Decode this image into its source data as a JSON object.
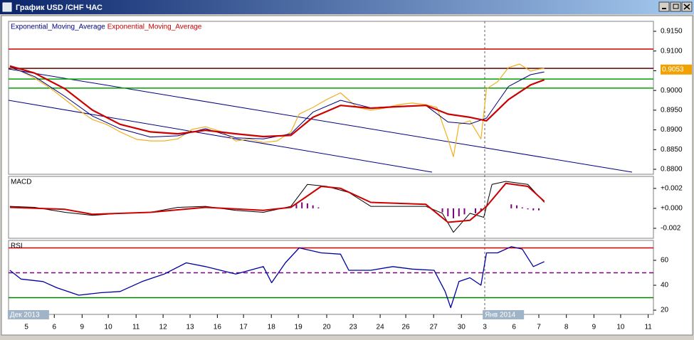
{
  "window": {
    "title": "График USD /CHF ЧАС"
  },
  "chart_data": [
    {
      "type": "line",
      "ylim": [
        0.87874,
        0.91753
      ],
      "yticks": [
        {
          "value": 0.915,
          "label": "0.9150"
        },
        {
          "value": 0.91,
          "label": "0.9100"
        },
        {
          "value": 0.905,
          "label": "0.9050"
        },
        {
          "value": 0.9,
          "label": "0.9000"
        },
        {
          "value": 0.895,
          "label": "0.8950"
        },
        {
          "value": 0.89,
          "label": "0.8900"
        },
        {
          "value": 0.885,
          "label": "0.8850"
        },
        {
          "value": 0.88,
          "label": "0.8800"
        }
      ],
      "last_price": 0.9053,
      "hlines": [
        {
          "value": 0.9105,
          "color": "#cc0000"
        },
        {
          "value": 0.9056,
          "color": "#600000"
        },
        {
          "value": 0.9029,
          "color": "#00a000"
        },
        {
          "value": 0.9006,
          "color": "#00a000"
        }
      ],
      "series": [
        {
          "color": "#f0b020",
          "width": 1.2,
          "style": "line",
          "x": [
            -0.6,
            -0.2,
            0.3,
            0.9,
            1.4,
            1.9,
            2.4,
            2.9,
            3.4,
            4.0,
            4.5,
            5.0,
            5.5,
            6.0,
            6.5,
            7.1,
            7.6,
            8.1,
            8.6,
            9.1,
            9.6,
            9.9,
            10.4,
            10.9,
            11.4,
            12.0,
            12.5,
            13.0,
            13.5,
            14.0,
            14.5,
            14.9,
            15.3,
            15.5,
            15.7,
            16.1,
            16.5,
            16.7,
            17.1,
            17.5,
            17.9,
            18.3,
            18.6,
            18.8
          ],
          "values": [
            0.9058,
            0.9049,
            0.9031,
            0.9004,
            0.8977,
            0.895,
            0.8926,
            0.8914,
            0.8895,
            0.8876,
            0.8872,
            0.8872,
            0.8877,
            0.8901,
            0.8908,
            0.8895,
            0.8872,
            0.8877,
            0.8868,
            0.8872,
            0.8895,
            0.894,
            0.8957,
            0.8977,
            0.8994,
            0.8957,
            0.895,
            0.8955,
            0.8964,
            0.8968,
            0.8964,
            0.8957,
            0.8877,
            0.8832,
            0.8914,
            0.8923,
            0.8877,
            0.9004,
            0.9022,
            0.9058,
            0.9067,
            0.9049,
            0.9054,
            0.9056
          ]
        },
        {
          "name": "Exponential_Moving_Average",
          "color": "#000080",
          "width": 1,
          "style": "line",
          "x": [
            -0.6,
            0.3,
            1.4,
            2.4,
            3.4,
            4.5,
            5.5,
            6.5,
            7.6,
            8.6,
            9.6,
            10.4,
            11.4,
            12.5,
            13.5,
            14.5,
            15.3,
            16.1,
            16.7,
            17.5,
            18.3,
            18.8
          ],
          "values": [
            0.906,
            0.9035,
            0.8985,
            0.8935,
            0.8903,
            0.8882,
            0.8885,
            0.8903,
            0.888,
            0.8877,
            0.889,
            0.8945,
            0.8975,
            0.8956,
            0.896,
            0.8962,
            0.892,
            0.8915,
            0.893,
            0.901,
            0.904,
            0.9047
          ]
        },
        {
          "name": "Exponential_Moving_Average",
          "color": "#cc0000",
          "width": 2.2,
          "style": "line",
          "x": [
            -0.6,
            0.3,
            1.4,
            2.4,
            3.4,
            4.5,
            5.5,
            6.5,
            7.6,
            8.6,
            9.6,
            10.4,
            11.4,
            12.5,
            13.5,
            14.5,
            15.3,
            16.1,
            16.7,
            17.5,
            18.3,
            18.8
          ],
          "values": [
            0.9062,
            0.9044,
            0.9004,
            0.895,
            0.8914,
            0.8895,
            0.889,
            0.8899,
            0.889,
            0.8883,
            0.8886,
            0.8932,
            0.8962,
            0.8955,
            0.8959,
            0.8962,
            0.894,
            0.8932,
            0.8923,
            0.8977,
            0.9014,
            0.9027
          ]
        }
      ]
    },
    {
      "type": "line",
      "title": "MACD",
      "ylim": [
        -0.003,
        0.0032
      ],
      "yticks": [
        {
          "value": 0.002,
          "label": "+0.002"
        },
        {
          "value": 0,
          "label": "+0.000"
        },
        {
          "value": -0.002,
          "label": "-0.002"
        }
      ],
      "series": [
        {
          "color": "#800080",
          "width": 2,
          "style": "bar",
          "x": [
            9.8,
            10.0,
            10.2,
            10.4,
            10.6,
            15.1,
            15.3,
            15.5,
            15.7,
            15.9,
            16.3,
            16.5,
            17.6,
            17.8,
            18.0,
            18.2,
            18.4,
            18.6
          ],
          "values": [
            0.0004,
            0.0006,
            0.0005,
            0.0003,
            0.0001,
            -0.0004,
            -0.0008,
            -0.001,
            -0.0008,
            -0.0006,
            -0.0005,
            -0.0003,
            0.0004,
            0.0003,
            0.0001,
            -0.0001,
            -0.0002,
            -0.0002
          ]
        },
        {
          "color": "#000000",
          "width": 1,
          "style": "line",
          "x": [
            -0.6,
            0.3,
            1.4,
            2.4,
            3.4,
            4.5,
            5.5,
            6.5,
            7.6,
            8.6,
            9.6,
            10.2,
            10.9,
            11.7,
            12.5,
            13.5,
            14.5,
            15.1,
            15.5,
            16.1,
            16.6,
            16.9,
            17.4,
            18.2,
            18.8
          ],
          "values": [
            0.0002,
            0.0001,
            -0.0004,
            -0.0007,
            -0.0005,
            -0.0004,
            0.0001,
            0.0002,
            -0.0002,
            -0.0004,
            0.0002,
            0.0024,
            0.0022,
            0.0016,
            0.0002,
            0.0002,
            0.0002,
            -0.0005,
            -0.0024,
            -0.0005,
            -0.0009,
            0.0024,
            0.0027,
            0.0024,
            0.0006
          ]
        },
        {
          "color": "#cc0000",
          "width": 2,
          "style": "line",
          "x": [
            -0.6,
            1.4,
            2.4,
            4.5,
            6.5,
            8.6,
            9.6,
            10.7,
            11.4,
            12.5,
            14.5,
            15.3,
            16.1,
            16.7,
            17.4,
            18.2,
            18.8
          ],
          "values": [
            0.0001,
            -0.0001,
            -0.0006,
            -0.0004,
            0.0001,
            -0.0002,
            0.0001,
            0.0022,
            0.002,
            0.0006,
            0.0004,
            -0.0014,
            -0.0012,
            0.0002,
            0.0025,
            0.0022,
            0.0007
          ]
        }
      ]
    },
    {
      "type": "line",
      "title": "RSI",
      "ylim": [
        16.6,
        76
      ],
      "yticks": [
        60,
        40,
        20
      ],
      "hlines": [
        {
          "value": 70,
          "color": "#dd0000"
        },
        {
          "value": 50,
          "color": "#800080",
          "style": "dashed"
        },
        {
          "value": 30,
          "color": "#008000"
        }
      ],
      "xlim": [
        -0.65,
        22.76
      ],
      "xticks": [
        {
          "value": 0,
          "label": "5"
        },
        {
          "value": 1.01,
          "label": "6"
        },
        {
          "value": 2.02,
          "label": "9"
        },
        {
          "value": 2.97,
          "label": "10"
        },
        {
          "value": 3.98,
          "label": "11"
        },
        {
          "value": 4.96,
          "label": "12"
        },
        {
          "value": 5.94,
          "label": "13"
        },
        {
          "value": 6.93,
          "label": "16"
        },
        {
          "value": 7.88,
          "label": "17"
        },
        {
          "value": 8.89,
          "label": "18"
        },
        {
          "value": 9.87,
          "label": "19"
        },
        {
          "value": 10.9,
          "label": "20"
        },
        {
          "value": 11.86,
          "label": "23"
        },
        {
          "value": 12.84,
          "label": "24"
        },
        {
          "value": 13.77,
          "label": "26"
        },
        {
          "value": 14.78,
          "label": "27"
        },
        {
          "value": 15.79,
          "label": "30"
        },
        {
          "value": 16.64,
          "label": "3"
        },
        {
          "value": 17.7,
          "label": "6"
        },
        {
          "value": 18.6,
          "label": "7"
        },
        {
          "value": 19.6,
          "label": "8"
        },
        {
          "value": 20.6,
          "label": "9"
        },
        {
          "value": 21.57,
          "label": "10"
        },
        {
          "value": 22.57,
          "label": "11"
        }
      ],
      "period_labels": [
        {
          "value": -0.6,
          "label": "Дек 2013"
        },
        {
          "value": 16.64,
          "label": "Янв 2014"
        }
      ],
      "series": [
        {
          "color": "#0000a0",
          "width": 1.3,
          "style": "line",
          "x": [
            -0.6,
            -0.2,
            0.6,
            1.1,
            1.9,
            2.7,
            3.4,
            4.2,
            5.0,
            5.8,
            6.5,
            7.6,
            8.6,
            8.9,
            9.4,
            9.9,
            10.7,
            11.4,
            11.7,
            12.5,
            13.3,
            14.0,
            14.8,
            15.2,
            15.4,
            15.7,
            16.1,
            16.5,
            16.7,
            17.1,
            17.6,
            18.0,
            18.4,
            18.8
          ],
          "values": [
            52,
            45,
            43,
            38,
            32,
            34,
            35,
            43,
            49,
            58,
            55,
            49,
            55,
            42,
            58,
            70,
            66,
            65,
            52,
            52,
            55,
            53,
            52,
            35,
            22,
            43,
            46,
            40,
            66,
            66,
            71,
            69,
            55,
            59
          ]
        }
      ]
    }
  ]
}
